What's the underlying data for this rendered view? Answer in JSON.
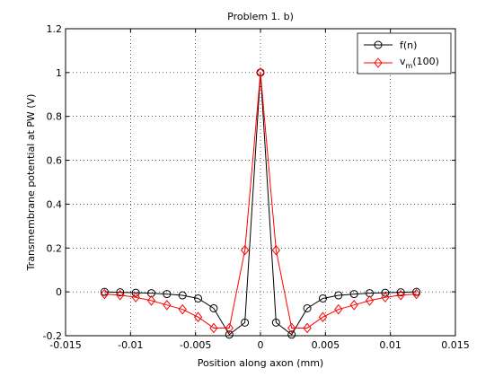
{
  "chart_data": {
    "type": "line",
    "title": "Problem 1. b)",
    "xlabel": "Position along axon (mm)",
    "ylabel": "Transmembrane potential at PW (V)",
    "xlim": [
      -0.015,
      0.015
    ],
    "ylim": [
      -0.2,
      1.2
    ],
    "xticks": [
      -0.015,
      -0.01,
      -0.005,
      0,
      0.005,
      0.01,
      0.015
    ],
    "xtick_labels": [
      "-0.015",
      "-0.01",
      "-0.005",
      "0",
      "0.005",
      "0.01",
      "0.015"
    ],
    "yticks": [
      -0.2,
      0,
      0.2,
      0.4,
      0.6,
      0.8,
      1,
      1.2
    ],
    "ytick_labels": [
      "-0.2",
      "0",
      "0.2",
      "0.4",
      "0.6",
      "0.8",
      "1",
      "1.2"
    ],
    "grid": true,
    "legend_position": "top-right",
    "x": [
      -0.012,
      -0.0108,
      -0.0096,
      -0.0084,
      -0.0072,
      -0.006,
      -0.0048,
      -0.0036,
      -0.0024,
      -0.0012,
      0,
      0.0012,
      0.0024,
      0.0036,
      0.0048,
      0.006,
      0.0072,
      0.0084,
      0.0096,
      0.0108,
      0.012
    ],
    "series": [
      {
        "name": "f(n)",
        "color": "#000000",
        "marker": "circle",
        "values": [
          0.0,
          -0.002,
          -0.004,
          -0.006,
          -0.01,
          -0.016,
          -0.03,
          -0.075,
          -0.195,
          -0.14,
          1.0,
          -0.14,
          -0.195,
          -0.075,
          -0.03,
          -0.016,
          -0.01,
          -0.006,
          -0.004,
          -0.002,
          0.0
        ]
      },
      {
        "name_main": "v",
        "name_sub": "m",
        "name_rest": "(100)",
        "color": "#ff0000",
        "marker": "diamond",
        "values": [
          -0.01,
          -0.015,
          -0.025,
          -0.04,
          -0.06,
          -0.08,
          -0.115,
          -0.165,
          -0.165,
          0.19,
          1.0,
          0.19,
          -0.165,
          -0.165,
          -0.115,
          -0.08,
          -0.06,
          -0.04,
          -0.025,
          -0.015,
          -0.01
        ]
      }
    ]
  }
}
